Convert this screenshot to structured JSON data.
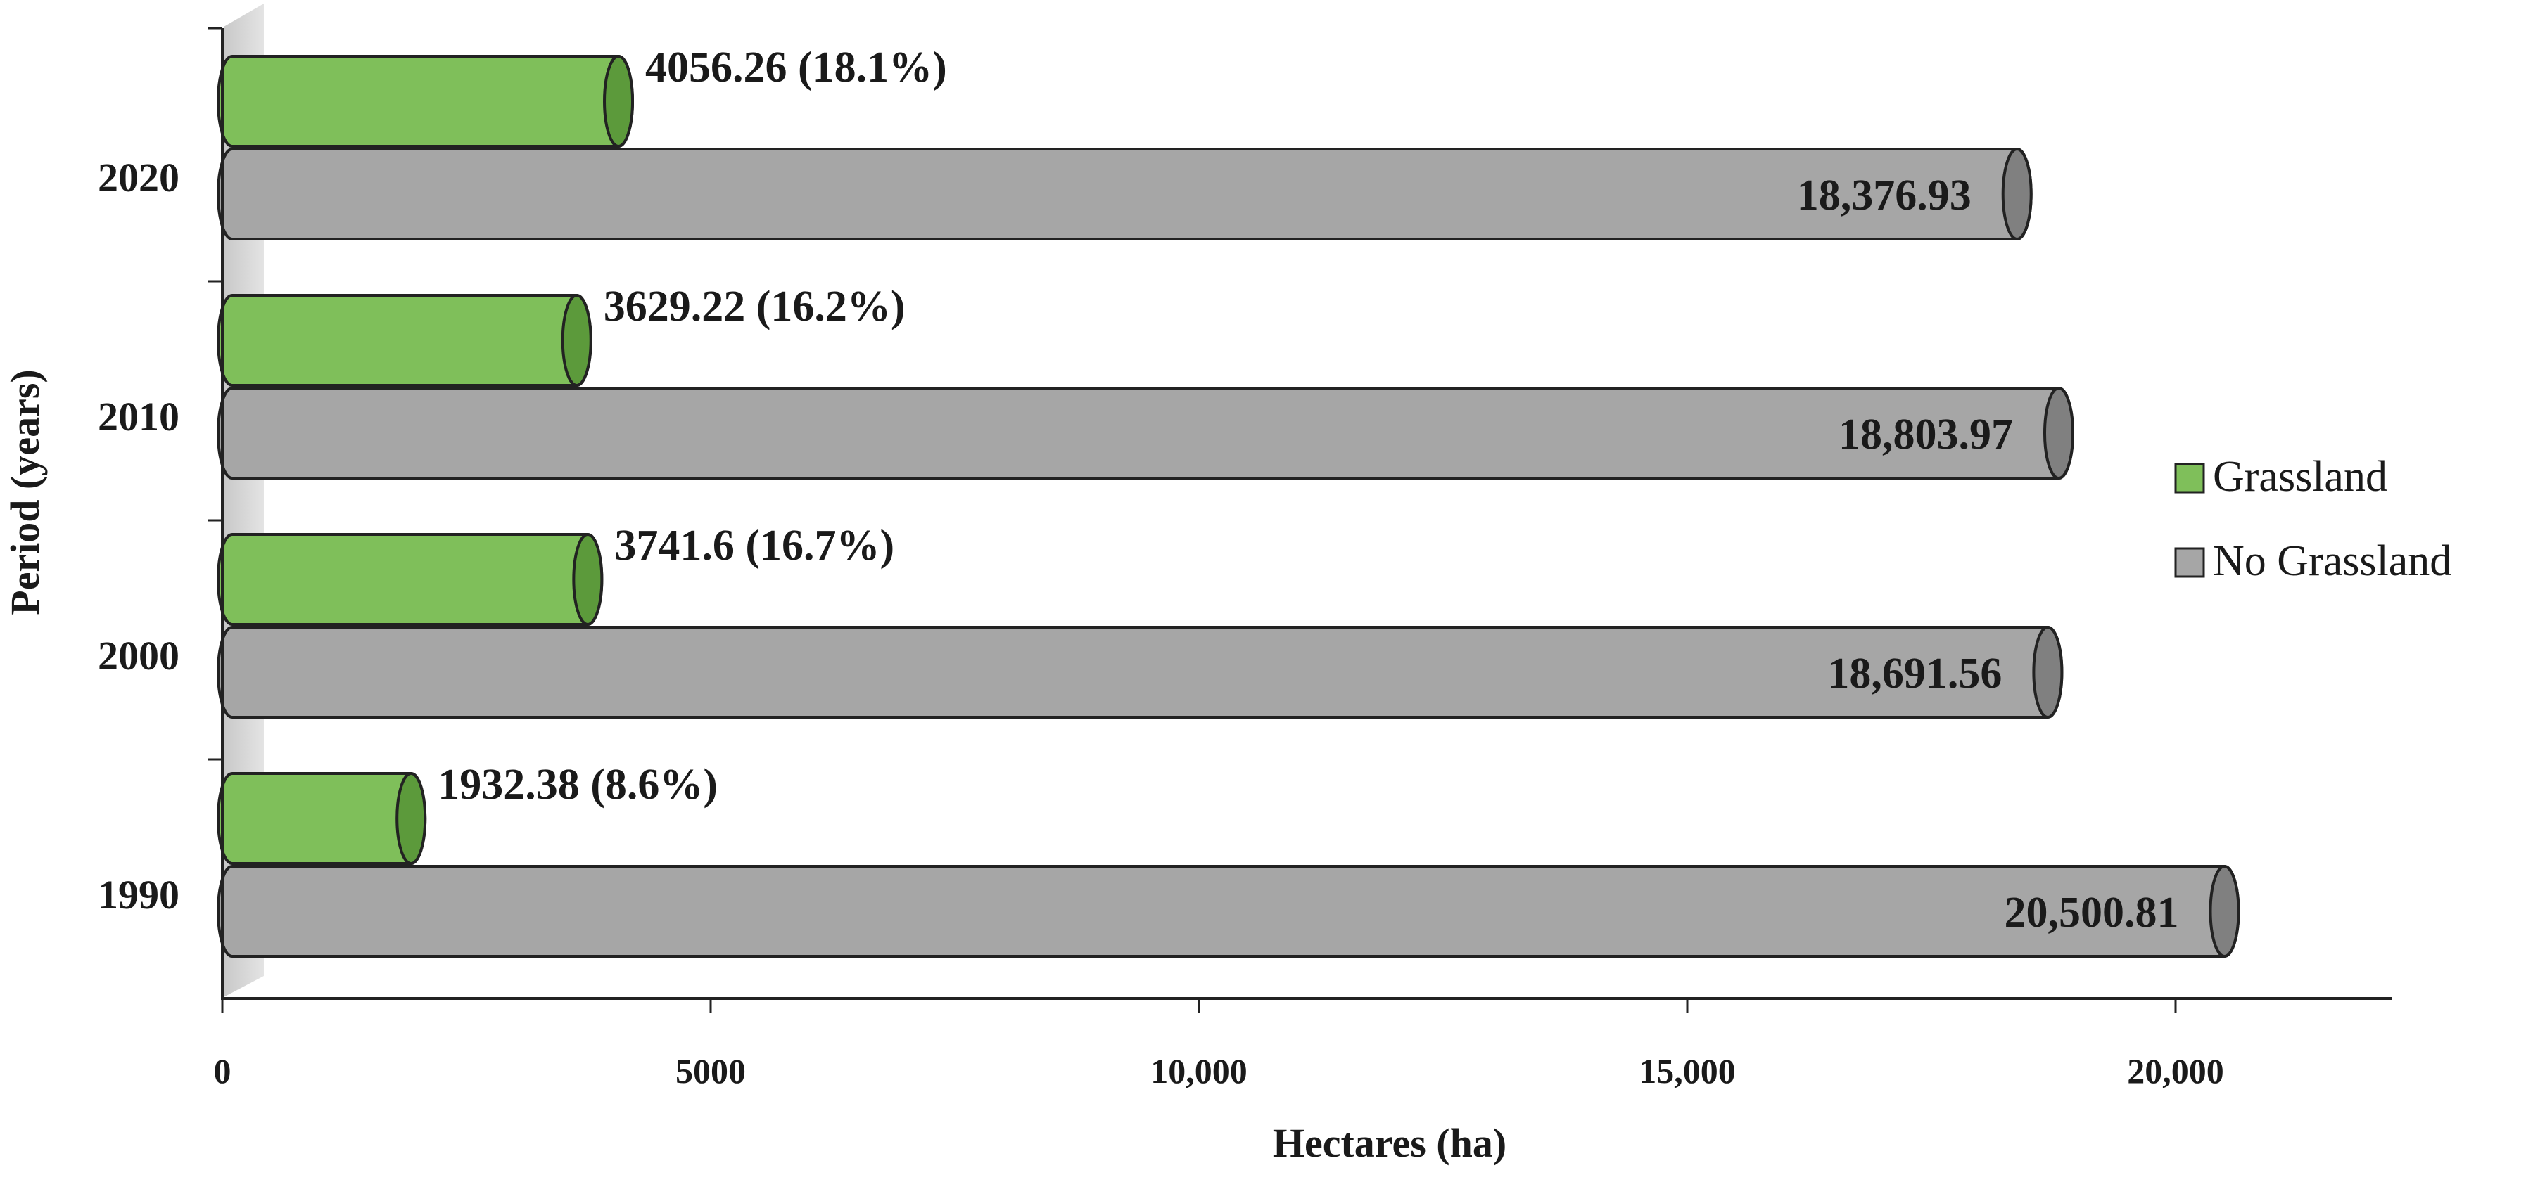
{
  "chart_data": {
    "type": "bar",
    "orientation": "horizontal",
    "categories": [
      "2020",
      "2010",
      "2000",
      "1990"
    ],
    "series": [
      {
        "name": "Grassland",
        "color": "#7fbf5a",
        "values": [
          4056.26,
          3629.22,
          3741.6,
          1932.38
        ],
        "labels": [
          "4056.26 (18.1%)",
          "3629.22 (16.2%)",
          "3741.6 (16.7%)",
          "1932.38 (8.6%)"
        ]
      },
      {
        "name": "No Grassland",
        "color": "#a6a6a6",
        "values": [
          18376.93,
          18803.97,
          18691.56,
          20500.81
        ],
        "labels": [
          "18,376.93",
          "18,803.97",
          "18,691.56",
          "20,500.81"
        ]
      }
    ],
    "xlabel": "Hectares (ha)",
    "ylabel": "Period (years)",
    "xlim": [
      0,
      22000
    ],
    "xticks": [
      0,
      5000,
      10000,
      15000,
      20000
    ],
    "xtick_labels": [
      "0",
      "5000",
      "10,000",
      "15,000",
      "20,000"
    ],
    "legend_position": "right",
    "grid": false
  }
}
